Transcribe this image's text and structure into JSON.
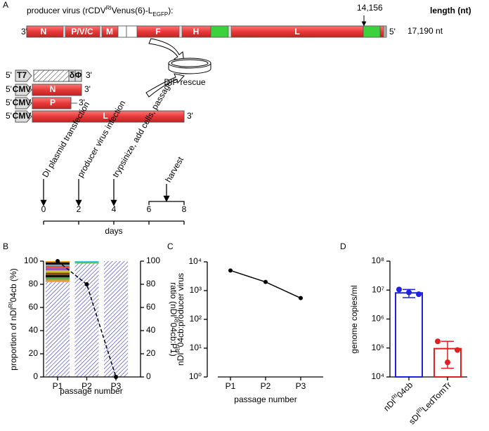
{
  "panel_labels": [
    "A",
    "B",
    "C",
    "D"
  ],
  "diagram": {
    "title": [
      "producer virus (rCDV",
      "RI",
      "Venus(6)-L",
      "EGFP",
      "):"
    ],
    "length_header": "length (nt)",
    "length": "17,190 nt",
    "position": "14,156",
    "end3": "3'",
    "end5": "5'",
    "genes": [
      "N",
      "P/V/C",
      "M",
      "F",
      "H",
      "L"
    ],
    "plasmids": [
      {
        "promoter": "T7",
        "parts": [
          "δ",
          "Φ"
        ]
      },
      {
        "promoter": "CMV",
        "gene": "N"
      },
      {
        "promoter": "CMV",
        "gene": "P"
      },
      {
        "promoter": "CMV",
        "gene": "L"
      }
    ],
    "rescue": "DIP rescue",
    "timeline": {
      "events": [
        {
          "label": "DI plasmid transfection",
          "day": 0
        },
        {
          "label": "producer virus infection",
          "day": 2
        },
        {
          "label": "trypsinize, add cells, passage",
          "day": 4
        },
        {
          "label": "harvest",
          "day": 7
        }
      ],
      "harvest_range": [
        6,
        8
      ],
      "xticks": [
        0,
        2,
        4,
        6,
        8
      ],
      "xlim": [
        0,
        8
      ],
      "xlabel": "days"
    }
  },
  "chart_data": [
    {
      "type": "bar",
      "stacked": true,
      "categories": [
        "P1",
        "P2",
        "P3"
      ],
      "xlabel": "passage number",
      "ylabel": [
        "proportion of nDI",
        "RI",
        "04cb (%)"
      ],
      "y2label": [
        "ratio (nDI",
        "RI",
        "04cb:P1)"
      ],
      "ylim": [
        0,
        100
      ],
      "yticks": [
        0,
        20,
        40,
        60,
        80,
        100
      ],
      "y2lim": [
        0,
        100
      ],
      "y2ticks": [
        0,
        20,
        40,
        60,
        80,
        100
      ],
      "series": [
        {
          "color": "#3434c8",
          "hatch": true,
          "values": [
            82,
            98,
            100
          ]
        },
        {
          "color": "#e89a2c",
          "values": [
            2,
            0,
            0
          ]
        },
        {
          "color": "#4caf50",
          "values": [
            2,
            1,
            0
          ]
        },
        {
          "color": "#111111",
          "values": [
            2,
            0,
            0
          ]
        },
        {
          "color": "#8b4513",
          "values": [
            2,
            0,
            0
          ]
        },
        {
          "color": "#c8c830",
          "values": [
            2,
            0,
            0
          ]
        },
        {
          "color": "#9b59b6",
          "values": [
            2,
            0,
            0
          ]
        },
        {
          "color": "#e74c3c",
          "values": [
            2,
            0,
            0
          ]
        },
        {
          "color": "#3fc0e0",
          "values": [
            1,
            1,
            0
          ]
        },
        {
          "color": "#111111",
          "values": [
            2,
            0,
            0
          ]
        },
        {
          "color": "#f39c12",
          "values": [
            1,
            0,
            0
          ]
        },
        {
          "type": "line",
          "axis": "y2",
          "color": "#000000",
          "dashed": true,
          "values": [
            100,
            80,
            0
          ]
        }
      ]
    },
    {
      "type": "line",
      "log": true,
      "categories": [
        "P1",
        "P2",
        "P3"
      ],
      "values": [
        5000,
        2000,
        550
      ],
      "color": "#000000",
      "xlabel": "passage number",
      "ylabel": [
        "nDI",
        "RI",
        "04cb:producer virus"
      ],
      "ylim": [
        1,
        10000
      ],
      "yticks": [
        {
          "value": 1,
          "label": "10⁰"
        },
        {
          "value": 10,
          "label": "10¹"
        },
        {
          "value": 100,
          "label": "10²"
        },
        {
          "value": 1000,
          "label": "10³"
        },
        {
          "value": 10000,
          "label": "10⁴"
        }
      ]
    },
    {
      "type": "bar",
      "log": true,
      "categories": [
        [
          "nDI",
          "RI",
          "04cb"
        ],
        [
          "sDI",
          "RI",
          "LedTomTr"
        ]
      ],
      "values": [
        8000000,
        95000
      ],
      "errors": [
        2500000,
        75000
      ],
      "colors": [
        "#2020e0",
        "#e02020"
      ],
      "points": [
        [
          10500000,
          8300000,
          7200000
        ],
        [
          170000,
          32000,
          85000
        ]
      ],
      "ylabel": "genome copies/ml",
      "ylim": [
        10000,
        100000000
      ],
      "yticks": [
        {
          "value": 10000,
          "label": "10⁴"
        },
        {
          "value": 100000,
          "label": "10⁵"
        },
        {
          "value": 1000000,
          "label": "10⁶"
        },
        {
          "value": 10000000,
          "label": "10⁷"
        },
        {
          "value": 100000000,
          "label": "10⁸"
        }
      ]
    }
  ]
}
